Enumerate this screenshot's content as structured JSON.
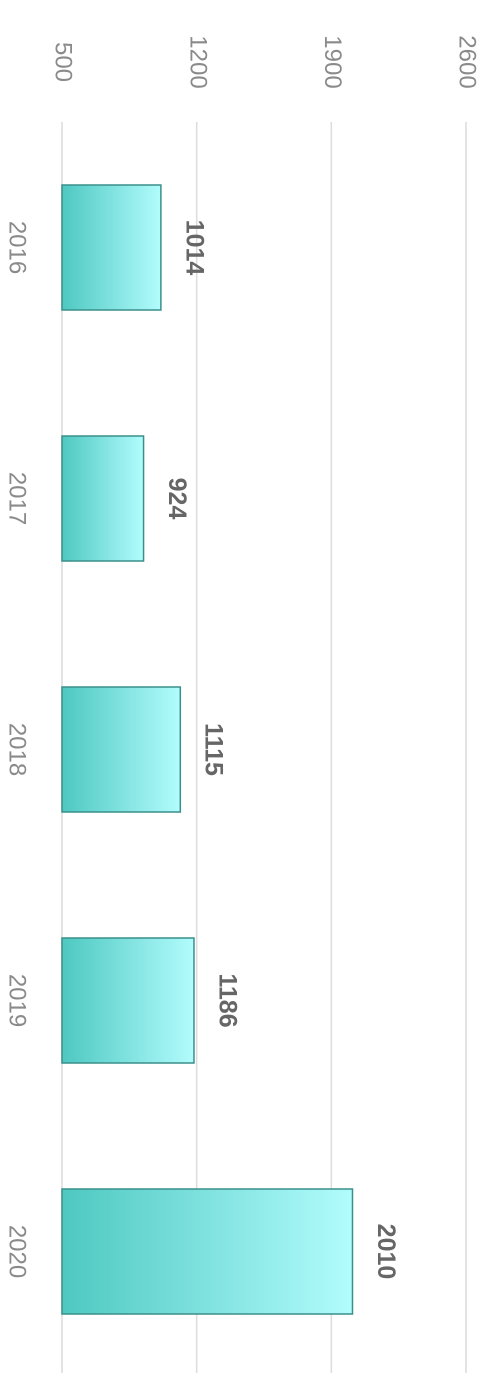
{
  "chart_data": {
    "type": "bar",
    "categories": [
      "2016",
      "2017",
      "2018",
      "2019",
      "2020"
    ],
    "values": [
      1014,
      924,
      1115,
      1186,
      2010
    ],
    "color": "#5fd8d2",
    "ylim": [
      500,
      2600
    ],
    "yticks": [
      500,
      1200,
      1900,
      2600
    ],
    "grid": true
  }
}
